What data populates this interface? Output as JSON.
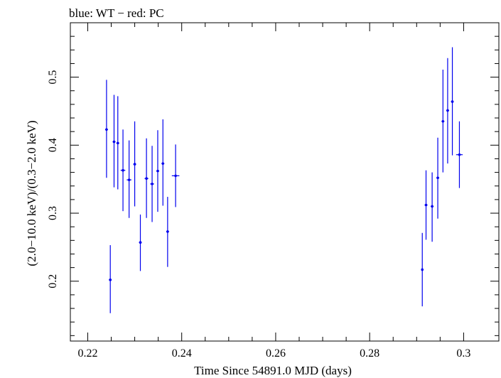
{
  "chart_data": {
    "type": "scatter",
    "title": "blue: WT − red: PC",
    "xlabel": "Time Since 54891.0 MJD (days)",
    "ylabel": "(2.0−10.0 keV)/(0.3−2.0 keV)",
    "xlim": [
      0.2163,
      0.3075
    ],
    "ylim": [
      0.112,
      0.58
    ],
    "x_ticks": [
      0.22,
      0.24,
      0.26,
      0.28,
      0.3
    ],
    "x_tick_labels": [
      "0.22",
      "0.24",
      "0.26",
      "0.28",
      "0.3"
    ],
    "y_ticks": [
      0.2,
      0.3,
      0.4,
      0.5
    ],
    "y_tick_labels": [
      "0.2",
      "0.3",
      "0.4",
      "0.5"
    ],
    "grid": false,
    "series": [
      {
        "color": "#0000ee",
        "points": [
          {
            "x": 0.224,
            "y": 0.423,
            "xerr": 0.0003,
            "yerr_lo": 0.071,
            "yerr_hi": 0.073
          },
          {
            "x": 0.2248,
            "y": 0.202,
            "xerr": 0.0003,
            "yerr_lo": 0.049,
            "yerr_hi": 0.051
          },
          {
            "x": 0.2256,
            "y": 0.405,
            "xerr": 0.0003,
            "yerr_lo": 0.067,
            "yerr_hi": 0.069
          },
          {
            "x": 0.2264,
            "y": 0.403,
            "xerr": 0.0003,
            "yerr_lo": 0.068,
            "yerr_hi": 0.069
          },
          {
            "x": 0.2275,
            "y": 0.363,
            "xerr": 0.0005,
            "yerr_lo": 0.06,
            "yerr_hi": 0.06
          },
          {
            "x": 0.2288,
            "y": 0.349,
            "xerr": 0.0005,
            "yerr_lo": 0.056,
            "yerr_hi": 0.058
          },
          {
            "x": 0.23,
            "y": 0.372,
            "xerr": 0.0003,
            "yerr_lo": 0.062,
            "yerr_hi": 0.063
          },
          {
            "x": 0.2312,
            "y": 0.257,
            "xerr": 0.0003,
            "yerr_lo": 0.042,
            "yerr_hi": 0.041
          },
          {
            "x": 0.2325,
            "y": 0.351,
            "xerr": 0.0004,
            "yerr_lo": 0.058,
            "yerr_hi": 0.059
          },
          {
            "x": 0.2337,
            "y": 0.343,
            "xerr": 0.0004,
            "yerr_lo": 0.056,
            "yerr_hi": 0.056
          },
          {
            "x": 0.2349,
            "y": 0.362,
            "xerr": 0.0003,
            "yerr_lo": 0.06,
            "yerr_hi": 0.06
          },
          {
            "x": 0.236,
            "y": 0.373,
            "xerr": 0.0003,
            "yerr_lo": 0.062,
            "yerr_hi": 0.065
          },
          {
            "x": 0.237,
            "y": 0.273,
            "xerr": 0.0003,
            "yerr_lo": 0.052,
            "yerr_hi": 0.051
          },
          {
            "x": 0.2387,
            "y": 0.355,
            "xerr": 0.0008,
            "yerr_lo": 0.046,
            "yerr_hi": 0.046
          },
          {
            "x": 0.2912,
            "y": 0.217,
            "xerr": 0.0002,
            "yerr_lo": 0.054,
            "yerr_hi": 0.054
          },
          {
            "x": 0.292,
            "y": 0.312,
            "xerr": 0.0003,
            "yerr_lo": 0.051,
            "yerr_hi": 0.051
          },
          {
            "x": 0.2933,
            "y": 0.31,
            "xerr": 0.0003,
            "yerr_lo": 0.052,
            "yerr_hi": 0.05
          },
          {
            "x": 0.2945,
            "y": 0.352,
            "xerr": 0.0003,
            "yerr_lo": 0.06,
            "yerr_hi": 0.059
          },
          {
            "x": 0.2956,
            "y": 0.435,
            "xerr": 0.0003,
            "yerr_lo": 0.075,
            "yerr_hi": 0.076
          },
          {
            "x": 0.2966,
            "y": 0.451,
            "xerr": 0.0003,
            "yerr_lo": 0.078,
            "yerr_hi": 0.077
          },
          {
            "x": 0.2976,
            "y": 0.464,
            "xerr": 0.0003,
            "yerr_lo": 0.079,
            "yerr_hi": 0.08
          },
          {
            "x": 0.2991,
            "y": 0.386,
            "xerr": 0.0007,
            "yerr_lo": 0.049,
            "yerr_hi": 0.049
          }
        ]
      }
    ]
  }
}
